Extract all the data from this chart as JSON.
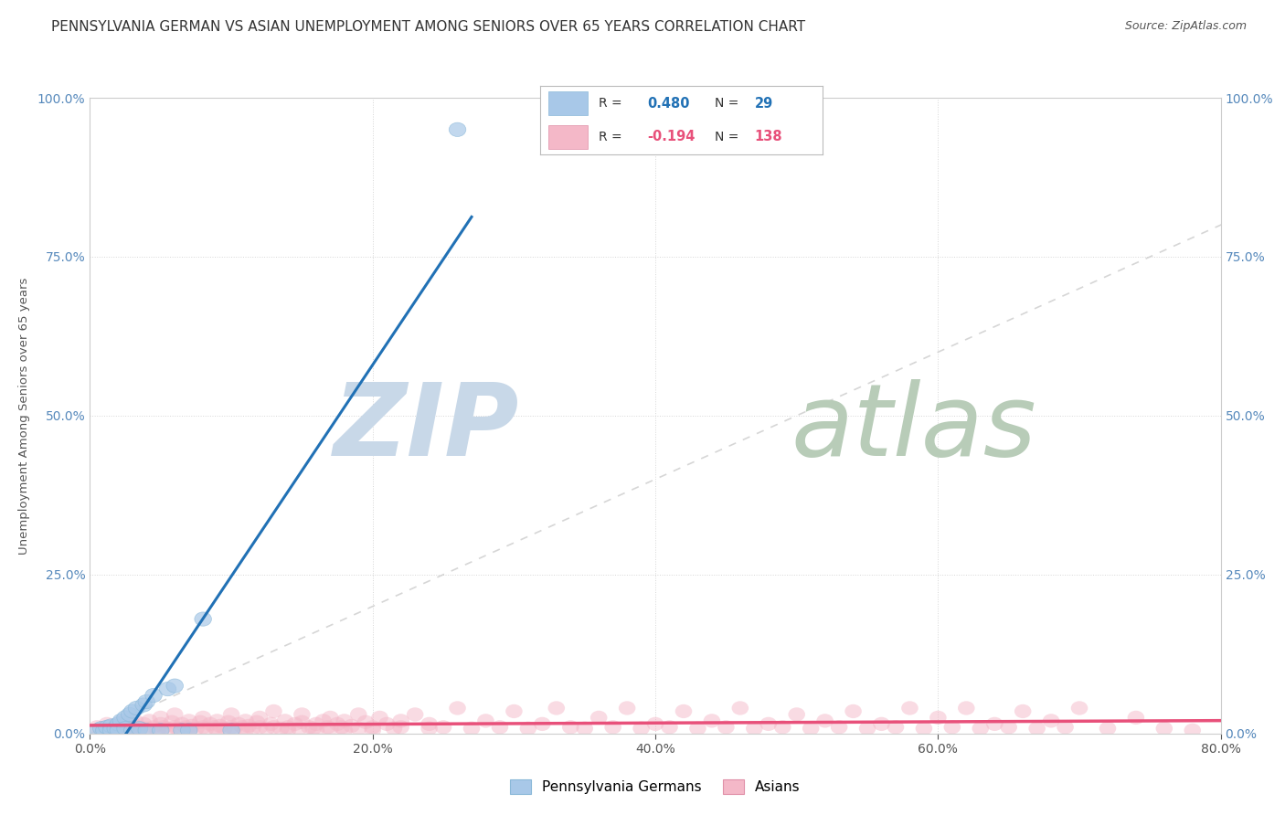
{
  "title": "PENNSYLVANIA GERMAN VS ASIAN UNEMPLOYMENT AMONG SENIORS OVER 65 YEARS CORRELATION CHART",
  "source": "Source: ZipAtlas.com",
  "ylabel": "Unemployment Among Seniors over 65 years",
  "xlim": [
    0.0,
    0.8
  ],
  "ylim": [
    0.0,
    1.0
  ],
  "xticks": [
    0.0,
    0.2,
    0.4,
    0.6,
    0.8
  ],
  "xtick_labels": [
    "0.0%",
    "20.0%",
    "40.0%",
    "60.0%",
    "80.0%"
  ],
  "yticks": [
    0.0,
    0.25,
    0.5,
    0.75,
    1.0
  ],
  "ytick_labels": [
    "0.0%",
    "25.0%",
    "50.0%",
    "75.0%",
    "100.0%"
  ],
  "german_color": "#a8c8e8",
  "asian_color": "#f4b8c8",
  "german_line_color": "#2171b5",
  "asian_line_color": "#e8507a",
  "ref_line_color": "#cccccc",
  "watermark_zip": "ZIP",
  "watermark_atlas": "atlas",
  "watermark_color_zip": "#c8d8e8",
  "watermark_color_atlas": "#c0d0c0",
  "background_color": "#ffffff",
  "german_points": [
    [
      0.005,
      0.005
    ],
    [
      0.008,
      0.008
    ],
    [
      0.01,
      0.005
    ],
    [
      0.012,
      0.01
    ],
    [
      0.015,
      0.012
    ],
    [
      0.015,
      0.005
    ],
    [
      0.018,
      0.008
    ],
    [
      0.02,
      0.015
    ],
    [
      0.02,
      0.005
    ],
    [
      0.022,
      0.02
    ],
    [
      0.025,
      0.025
    ],
    [
      0.025,
      0.008
    ],
    [
      0.028,
      0.03
    ],
    [
      0.03,
      0.035
    ],
    [
      0.03,
      0.005
    ],
    [
      0.033,
      0.04
    ],
    [
      0.035,
      0.008
    ],
    [
      0.038,
      0.045
    ],
    [
      0.04,
      0.05
    ],
    [
      0.04,
      0.005
    ],
    [
      0.045,
      0.06
    ],
    [
      0.05,
      0.005
    ],
    [
      0.055,
      0.07
    ],
    [
      0.06,
      0.075
    ],
    [
      0.065,
      0.005
    ],
    [
      0.07,
      0.005
    ],
    [
      0.08,
      0.18
    ],
    [
      0.1,
      0.005
    ],
    [
      0.26,
      0.95
    ]
  ],
  "asian_points": [
    [
      0.005,
      0.01
    ],
    [
      0.01,
      0.008
    ],
    [
      0.012,
      0.015
    ],
    [
      0.015,
      0.005
    ],
    [
      0.018,
      0.012
    ],
    [
      0.02,
      0.008
    ],
    [
      0.022,
      0.018
    ],
    [
      0.025,
      0.01
    ],
    [
      0.028,
      0.005
    ],
    [
      0.03,
      0.015
    ],
    [
      0.03,
      0.008
    ],
    [
      0.032,
      0.02
    ],
    [
      0.035,
      0.01
    ],
    [
      0.035,
      0.005
    ],
    [
      0.038,
      0.015
    ],
    [
      0.04,
      0.008
    ],
    [
      0.042,
      0.02
    ],
    [
      0.045,
      0.01
    ],
    [
      0.048,
      0.005
    ],
    [
      0.05,
      0.015
    ],
    [
      0.05,
      0.025
    ],
    [
      0.052,
      0.01
    ],
    [
      0.055,
      0.008
    ],
    [
      0.058,
      0.018
    ],
    [
      0.06,
      0.01
    ],
    [
      0.06,
      0.03
    ],
    [
      0.062,
      0.008
    ],
    [
      0.065,
      0.015
    ],
    [
      0.068,
      0.01
    ],
    [
      0.07,
      0.02
    ],
    [
      0.07,
      0.005
    ],
    [
      0.072,
      0.012
    ],
    [
      0.075,
      0.008
    ],
    [
      0.078,
      0.018
    ],
    [
      0.08,
      0.01
    ],
    [
      0.08,
      0.025
    ],
    [
      0.082,
      0.008
    ],
    [
      0.085,
      0.015
    ],
    [
      0.088,
      0.01
    ],
    [
      0.09,
      0.02
    ],
    [
      0.09,
      0.005
    ],
    [
      0.092,
      0.012
    ],
    [
      0.095,
      0.008
    ],
    [
      0.098,
      0.018
    ],
    [
      0.1,
      0.01
    ],
    [
      0.1,
      0.03
    ],
    [
      0.102,
      0.008
    ],
    [
      0.105,
      0.015
    ],
    [
      0.108,
      0.01
    ],
    [
      0.11,
      0.02
    ],
    [
      0.11,
      0.005
    ],
    [
      0.112,
      0.012
    ],
    [
      0.115,
      0.008
    ],
    [
      0.118,
      0.018
    ],
    [
      0.12,
      0.01
    ],
    [
      0.12,
      0.025
    ],
    [
      0.125,
      0.008
    ],
    [
      0.128,
      0.015
    ],
    [
      0.13,
      0.01
    ],
    [
      0.13,
      0.035
    ],
    [
      0.135,
      0.008
    ],
    [
      0.138,
      0.02
    ],
    [
      0.14,
      0.01
    ],
    [
      0.14,
      0.005
    ],
    [
      0.145,
      0.015
    ],
    [
      0.148,
      0.008
    ],
    [
      0.15,
      0.018
    ],
    [
      0.15,
      0.03
    ],
    [
      0.155,
      0.01
    ],
    [
      0.158,
      0.008
    ],
    [
      0.16,
      0.015
    ],
    [
      0.16,
      0.005
    ],
    [
      0.165,
      0.02
    ],
    [
      0.168,
      0.01
    ],
    [
      0.17,
      0.008
    ],
    [
      0.17,
      0.025
    ],
    [
      0.175,
      0.015
    ],
    [
      0.178,
      0.01
    ],
    [
      0.18,
      0.02
    ],
    [
      0.18,
      0.005
    ],
    [
      0.185,
      0.012
    ],
    [
      0.19,
      0.008
    ],
    [
      0.19,
      0.03
    ],
    [
      0.195,
      0.018
    ],
    [
      0.2,
      0.01
    ],
    [
      0.2,
      0.005
    ],
    [
      0.205,
      0.025
    ],
    [
      0.21,
      0.015
    ],
    [
      0.215,
      0.008
    ],
    [
      0.22,
      0.02
    ],
    [
      0.22,
      0.01
    ],
    [
      0.23,
      0.03
    ],
    [
      0.24,
      0.008
    ],
    [
      0.24,
      0.015
    ],
    [
      0.25,
      0.01
    ],
    [
      0.26,
      0.04
    ],
    [
      0.27,
      0.008
    ],
    [
      0.28,
      0.02
    ],
    [
      0.29,
      0.01
    ],
    [
      0.3,
      0.035
    ],
    [
      0.31,
      0.008
    ],
    [
      0.32,
      0.015
    ],
    [
      0.33,
      0.04
    ],
    [
      0.34,
      0.01
    ],
    [
      0.35,
      0.008
    ],
    [
      0.36,
      0.025
    ],
    [
      0.37,
      0.01
    ],
    [
      0.38,
      0.04
    ],
    [
      0.39,
      0.008
    ],
    [
      0.4,
      0.015
    ],
    [
      0.41,
      0.01
    ],
    [
      0.42,
      0.035
    ],
    [
      0.43,
      0.008
    ],
    [
      0.44,
      0.02
    ],
    [
      0.45,
      0.01
    ],
    [
      0.46,
      0.04
    ],
    [
      0.47,
      0.008
    ],
    [
      0.48,
      0.015
    ],
    [
      0.49,
      0.01
    ],
    [
      0.5,
      0.03
    ],
    [
      0.51,
      0.008
    ],
    [
      0.52,
      0.02
    ],
    [
      0.53,
      0.01
    ],
    [
      0.54,
      0.035
    ],
    [
      0.55,
      0.008
    ],
    [
      0.56,
      0.015
    ],
    [
      0.57,
      0.01
    ],
    [
      0.58,
      0.04
    ],
    [
      0.59,
      0.008
    ],
    [
      0.6,
      0.025
    ],
    [
      0.61,
      0.01
    ],
    [
      0.62,
      0.04
    ],
    [
      0.63,
      0.008
    ],
    [
      0.64,
      0.015
    ],
    [
      0.65,
      0.01
    ],
    [
      0.66,
      0.035
    ],
    [
      0.67,
      0.008
    ],
    [
      0.68,
      0.02
    ],
    [
      0.69,
      0.01
    ],
    [
      0.7,
      0.04
    ],
    [
      0.72,
      0.008
    ],
    [
      0.74,
      0.025
    ],
    [
      0.76,
      0.008
    ],
    [
      0.78,
      0.005
    ]
  ]
}
